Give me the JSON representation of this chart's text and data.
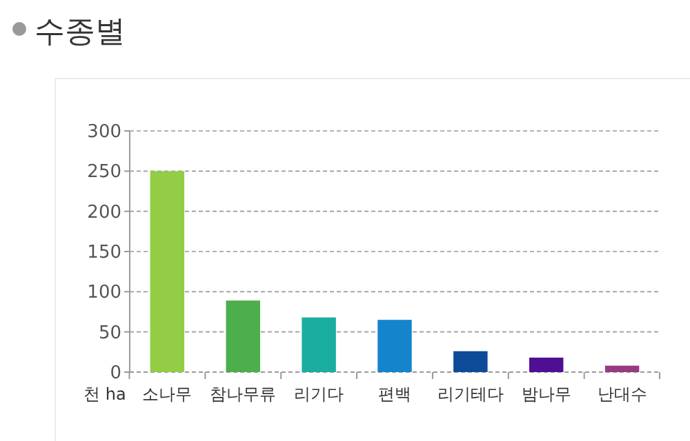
{
  "chart_data": {
    "type": "bar",
    "title": "수종별",
    "ylabel": "천 ha",
    "categories": [
      "소나무",
      "참나무류",
      "리기다",
      "편백",
      "리기테다",
      "밤나무",
      "난대수"
    ],
    "values": [
      250,
      89,
      68,
      65,
      26,
      18,
      8
    ],
    "colors": [
      "#92cd45",
      "#4cae4c",
      "#1aaea0",
      "#1485cc",
      "#0d4a98",
      "#4e0f95",
      "#973a80"
    ],
    "ylim": [
      0,
      300
    ],
    "yticks": [
      0,
      50,
      100,
      150,
      200,
      250,
      300
    ],
    "grid": "y"
  }
}
